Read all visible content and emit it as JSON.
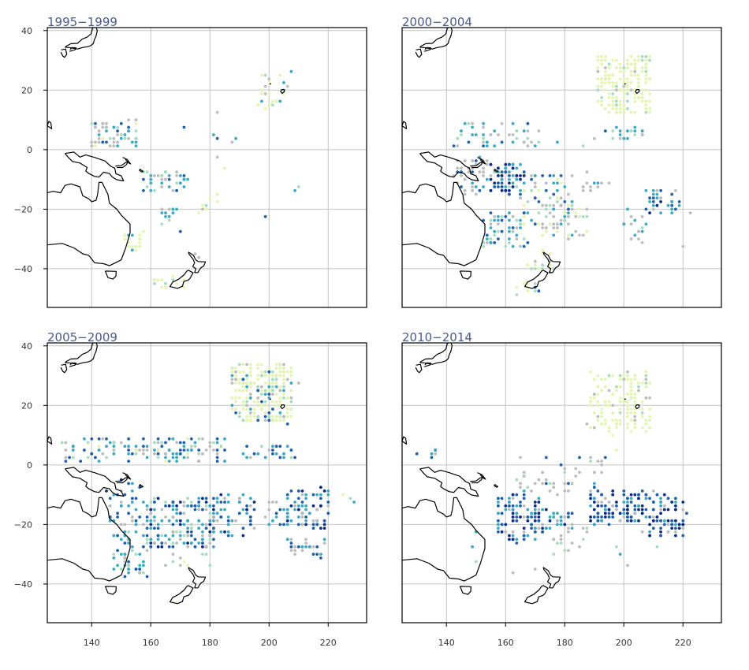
{
  "colors": {
    "title": "#4a5a8a",
    "grid": "#c4c4c4",
    "gray": "#bdbdbd",
    "pale": "#e4f5b2",
    "light": "#a8dcc0",
    "teal": "#3ea9c2",
    "blue": "#2261a9",
    "dark": "#0d2c84"
  },
  "chart_data": {
    "type": "scatter",
    "xlim": [
      125,
      233
    ],
    "ylim": [
      -53,
      41
    ],
    "x_ticks": [
      "140",
      "160",
      "180",
      "200",
      "220"
    ],
    "y_ticks": [
      "−40",
      "−20",
      "0",
      "20",
      "40"
    ],
    "x_tick_values": [
      140,
      160,
      180,
      200,
      220
    ],
    "y_tick_values": [
      -40,
      -20,
      0,
      20,
      40
    ],
    "grid": true,
    "panels": [
      {
        "title": "1995−1999",
        "clusters": [
          {
            "x": [
              140,
              156
            ],
            "y": [
              1,
              10
            ],
            "n": 60,
            "mix": {
              "gray": 0.35,
              "pale": 0.15,
              "light": 0.2,
              "teal": 0.2,
              "blue": 0.1
            }
          },
          {
            "x": [
              157,
              173
            ],
            "y": [
              -14,
              -7
            ],
            "n": 40,
            "mix": {
              "gray": 0.2,
              "light": 0.2,
              "teal": 0.35,
              "blue": 0.25
            }
          },
          {
            "x": [
              163,
              170
            ],
            "y": [
              -25,
              -20
            ],
            "n": 12,
            "mix": {
              "light": 0.4,
              "teal": 0.4,
              "gray": 0.2
            }
          },
          {
            "x": [
              150,
              157
            ],
            "y": [
              -34,
              -26
            ],
            "n": 18,
            "mix": {
              "pale": 0.5,
              "light": 0.3,
              "teal": 0.2
            }
          },
          {
            "x": [
              161,
              172
            ],
            "y": [
              -47,
              -43
            ],
            "n": 14,
            "mix": {
              "pale": 0.6,
              "light": 0.3,
              "gray": 0.1
            }
          },
          {
            "x": [
              196,
              206
            ],
            "y": [
              14,
              26
            ],
            "n": 24,
            "mix": {
              "pale": 0.55,
              "light": 0.2,
              "teal": 0.15,
              "gray": 0.1
            }
          },
          {
            "x": [
              174,
              184
            ],
            "y": [
              -22,
              -15
            ],
            "n": 8,
            "mix": {
              "pale": 0.5,
              "light": 0.3,
              "gray": 0.2
            }
          }
        ],
        "points": [
          {
            "x": 171,
            "y": 8,
            "c": "blue"
          },
          {
            "x": 181,
            "y": 5,
            "c": "teal"
          },
          {
            "x": 182,
            "y": 4,
            "c": "blue"
          },
          {
            "x": 187,
            "y": 3,
            "c": "gray"
          },
          {
            "x": 183,
            "y": 12,
            "c": "gray"
          },
          {
            "x": 189,
            "y": 4,
            "c": "teal"
          },
          {
            "x": 199,
            "y": -22,
            "c": "blue"
          },
          {
            "x": 209,
            "y": -14,
            "c": "teal"
          },
          {
            "x": 210,
            "y": -13,
            "c": "light"
          },
          {
            "x": 208,
            "y": 26,
            "c": "teal"
          },
          {
            "x": 175,
            "y": -35,
            "c": "gray"
          },
          {
            "x": 170,
            "y": -27,
            "c": "blue"
          },
          {
            "x": 183,
            "y": -3,
            "c": "gray"
          },
          {
            "x": 185,
            "y": -6,
            "c": "pale"
          },
          {
            "x": 176,
            "y": -36,
            "c": "gray"
          }
        ]
      },
      {
        "title": "2000−2004",
        "clusters": [
          {
            "x": [
              191,
              209
            ],
            "y": [
              12,
              32
            ],
            "n": 210,
            "mix": {
              "pale": 0.82,
              "light": 0.12,
              "gray": 0.06
            }
          },
          {
            "x": [
              193,
              208
            ],
            "y": [
              3,
              7
            ],
            "n": 22,
            "mix": {
              "light": 0.3,
              "teal": 0.3,
              "blue": 0.2,
              "gray": 0.2
            }
          },
          {
            "x": [
              142,
              172
            ],
            "y": [
              1,
              9
            ],
            "n": 50,
            "mix": {
              "gray": 0.3,
              "light": 0.2,
              "teal": 0.3,
              "blue": 0.2
            }
          },
          {
            "x": [
              143,
              155
            ],
            "y": [
              -15,
              -3
            ],
            "n": 45,
            "mix": {
              "gray": 0.75,
              "teal": 0.15,
              "blue": 0.1
            }
          },
          {
            "x": [
              155,
              166
            ],
            "y": [
              -15,
              -4
            ],
            "n": 75,
            "mix": {
              "dark": 0.35,
              "blue": 0.3,
              "teal": 0.25,
              "light": 0.1
            }
          },
          {
            "x": [
              165,
              183
            ],
            "y": [
              -26,
              -8
            ],
            "n": 65,
            "mix": {
              "gray": 0.25,
              "teal": 0.3,
              "blue": 0.2,
              "light": 0.15,
              "pale": 0.1
            }
          },
          {
            "x": [
              152,
              167
            ],
            "y": [
              -33,
              -20
            ],
            "n": 55,
            "mix": {
              "teal": 0.35,
              "light": 0.25,
              "blue": 0.2,
              "gray": 0.2
            }
          },
          {
            "x": [
              172,
              188
            ],
            "y": [
              -30,
              -18
            ],
            "n": 45,
            "mix": {
              "gray": 0.55,
              "light": 0.15,
              "teal": 0.15,
              "pale": 0.15
            }
          },
          {
            "x": [
              167,
              176
            ],
            "y": [
              -41,
              -34
            ],
            "n": 18,
            "mix": {
              "pale": 0.55,
              "light": 0.25,
              "gray": 0.2
            }
          },
          {
            "x": [
              163,
              171
            ],
            "y": [
              -49,
              -45
            ],
            "n": 10,
            "mix": {
              "pale": 0.5,
              "light": 0.3,
              "blue": 0.2
            }
          },
          {
            "x": [
              207,
              219
            ],
            "y": [
              -22,
              -12
            ],
            "n": 32,
            "mix": {
              "teal": 0.3,
              "blue": 0.3,
              "dark": 0.15,
              "gray": 0.25
            }
          },
          {
            "x": [
              199,
              207
            ],
            "y": [
              -31,
              -20
            ],
            "n": 16,
            "mix": {
              "gray": 0.65,
              "teal": 0.2,
              "light": 0.15
            }
          },
          {
            "x": [
              184,
              196
            ],
            "y": [
              -14,
              -11
            ],
            "n": 12,
            "mix": {
              "gray": 0.6,
              "blue": 0.2,
              "teal": 0.2
            }
          }
        ],
        "points": [
          {
            "x": 220,
            "y": -33,
            "c": "gray"
          },
          {
            "x": 222,
            "y": -21,
            "c": "gray"
          },
          {
            "x": 187,
            "y": -7,
            "c": "gray"
          },
          {
            "x": 190,
            "y": 4,
            "c": "gray"
          },
          {
            "x": 178,
            "y": 2,
            "c": "teal"
          },
          {
            "x": 186,
            "y": 1,
            "c": "light"
          }
        ]
      },
      {
        "title": "2005−2009",
        "clusters": [
          {
            "x": [
              187,
              208
            ],
            "y": [
              14,
              34
            ],
            "n": 260,
            "mix": {
              "pale": 0.7,
              "light": 0.12,
              "teal": 0.06,
              "blue": 0.04,
              "gray": 0.08
            }
          },
          {
            "x": [
              191,
              209
            ],
            "y": [
              2,
              7
            ],
            "n": 26,
            "mix": {
              "teal": 0.3,
              "blue": 0.3,
              "light": 0.2,
              "gray": 0.2
            }
          },
          {
            "x": [
              130,
              186
            ],
            "y": [
              1,
              9
            ],
            "n": 140,
            "mix": {
              "teal": 0.3,
              "blue": 0.25,
              "light": 0.15,
              "gray": 0.2,
              "pale": 0.1
            }
          },
          {
            "x": [
              145,
              158
            ],
            "y": [
              -20,
              -5
            ],
            "n": 38,
            "mix": {
              "blue": 0.35,
              "teal": 0.3,
              "gray": 0.2,
              "dark": 0.15
            }
          },
          {
            "x": [
              146,
              160
            ],
            "y": [
              -37,
              -20
            ],
            "n": 60,
            "mix": {
              "teal": 0.4,
              "light": 0.2,
              "blue": 0.2,
              "gray": 0.2
            }
          },
          {
            "x": [
              158,
              182
            ],
            "y": [
              -28,
              -11
            ],
            "n": 175,
            "mix": {
              "blue": 0.3,
              "teal": 0.3,
              "dark": 0.15,
              "gray": 0.15,
              "light": 0.1
            }
          },
          {
            "x": [
              181,
              196
            ],
            "y": [
              -24,
              -10
            ],
            "n": 55,
            "mix": {
              "blue": 0.35,
              "teal": 0.3,
              "dark": 0.15,
              "gray": 0.2
            }
          },
          {
            "x": [
              206,
              220
            ],
            "y": [
              -22,
              -8
            ],
            "n": 75,
            "mix": {
              "blue": 0.3,
              "teal": 0.25,
              "dark": 0.2,
              "gray": 0.25
            }
          },
          {
            "x": [
              206,
              219
            ],
            "y": [
              -31,
              -24
            ],
            "n": 26,
            "mix": {
              "blue": 0.35,
              "teal": 0.3,
              "gray": 0.35
            }
          },
          {
            "x": [
              198,
              207
            ],
            "y": [
              -22,
              -12
            ],
            "n": 16,
            "mix": {
              "teal": 0.4,
              "blue": 0.3,
              "gray": 0.3
            }
          },
          {
            "x": [
              165,
              180
            ],
            "y": [
              -34,
              -29
            ],
            "n": 10,
            "mix": {
              "light": 0.3,
              "pale": 0.3,
              "gray": 0.4
            }
          }
        ],
        "points": [
          {
            "x": 225,
            "y": -10,
            "c": "pale"
          },
          {
            "x": 229,
            "y": -12,
            "c": "teal"
          },
          {
            "x": 228,
            "y": -11,
            "c": "light"
          },
          {
            "x": 169,
            "y": -46,
            "c": "pale"
          },
          {
            "x": 208,
            "y": 22,
            "c": "gray"
          },
          {
            "x": 210,
            "y": 27,
            "c": "gray"
          }
        ]
      },
      {
        "title": "2010−2014",
        "clusters": [
          {
            "x": [
              188,
              209
            ],
            "y": [
              10,
              31
            ],
            "n": 150,
            "mix": {
              "pale": 0.82,
              "light": 0.08,
              "gray": 0.1
            }
          },
          {
            "x": [
              164,
              194
            ],
            "y": [
              -10,
              3
            ],
            "n": 48,
            "mix": {
              "gray": 0.65,
              "teal": 0.15,
              "blue": 0.1,
              "light": 0.1
            }
          },
          {
            "x": [
              157,
              172
            ],
            "y": [
              -26,
              -10
            ],
            "n": 85,
            "mix": {
              "dark": 0.3,
              "blue": 0.3,
              "teal": 0.25,
              "gray": 0.15
            }
          },
          {
            "x": [
              168,
              183
            ],
            "y": [
              -22,
              -15
            ],
            "n": 40,
            "mix": {
              "blue": 0.35,
              "dark": 0.25,
              "teal": 0.25,
              "gray": 0.15
            }
          },
          {
            "x": [
              188,
              204
            ],
            "y": [
              -20,
              -9
            ],
            "n": 95,
            "mix": {
              "dark": 0.3,
              "blue": 0.35,
              "teal": 0.25,
              "gray": 0.1
            }
          },
          {
            "x": [
              204,
              221
            ],
            "y": [
              -24,
              -9
            ],
            "n": 100,
            "mix": {
              "dark": 0.35,
              "blue": 0.3,
              "teal": 0.2,
              "gray": 0.15
            }
          },
          {
            "x": [
              129,
              137
            ],
            "y": [
              1,
              6
            ],
            "n": 8,
            "mix": {
              "teal": 0.3,
              "blue": 0.3,
              "light": 0.2,
              "gray": 0.2
            }
          },
          {
            "x": [
              175,
              188
            ],
            "y": [
              -30,
              -20
            ],
            "n": 18,
            "mix": {
              "gray": 0.5,
              "teal": 0.3,
              "light": 0.2
            }
          }
        ],
        "points": [
          {
            "x": 150,
            "y": -22,
            "c": "teal"
          },
          {
            "x": 149,
            "y": -28,
            "c": "teal"
          },
          {
            "x": 150,
            "y": -32,
            "c": "light"
          },
          {
            "x": 199,
            "y": -30,
            "c": "teal"
          },
          {
            "x": 198,
            "y": -28,
            "c": "light"
          },
          {
            "x": 188,
            "y": -23,
            "c": "gray"
          },
          {
            "x": 170,
            "y": -35,
            "c": "gray"
          },
          {
            "x": 163,
            "y": -36,
            "c": "gray"
          },
          {
            "x": 208,
            "y": 22,
            "c": "gray"
          },
          {
            "x": 197,
            "y": 5,
            "c": "pale"
          },
          {
            "x": 194,
            "y": 3,
            "c": "blue"
          },
          {
            "x": 211,
            "y": -27,
            "c": "light"
          },
          {
            "x": 201,
            "y": -34,
            "c": "gray"
          }
        ]
      }
    ]
  }
}
